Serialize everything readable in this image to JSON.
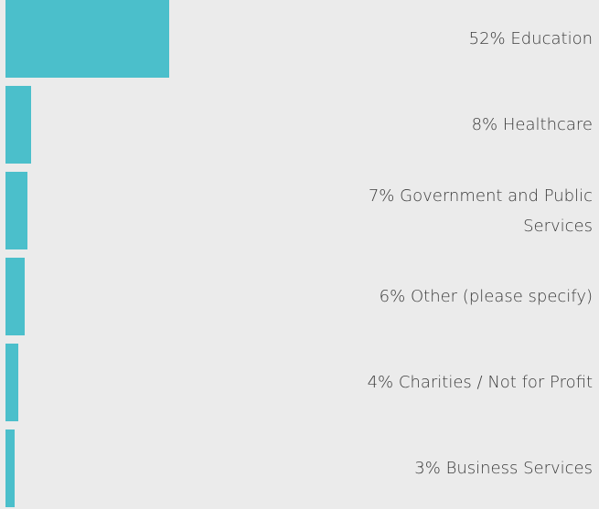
{
  "chart_data": {
    "type": "bar",
    "orientation": "horizontal",
    "categories": [
      "Education",
      "Healthcare",
      "Government and Public Services",
      "Other (please specify)",
      "Charities / Not for Profit",
      "Business Services"
    ],
    "values": [
      52,
      8,
      7,
      6,
      4,
      3
    ],
    "value_labels": [
      "52%",
      "8%",
      "7%",
      "6%",
      "4%",
      "3%"
    ],
    "color": "#4bbfcb"
  }
}
